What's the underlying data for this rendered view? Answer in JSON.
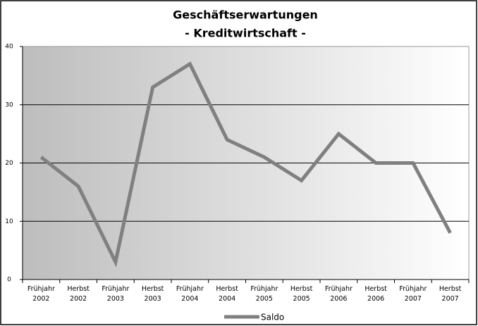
{
  "chart_data": {
    "type": "line",
    "title": "Geschäftserwartungen",
    "subtitle": "- Kreditwirtschaft -",
    "categories": [
      "Frühjahr 2002",
      "Herbst 2002",
      "Frühjahr 2003",
      "Herbst 2003",
      "Frühjahr 2004",
      "Herbst 2004",
      "Frühjahr 2005",
      "Herbst 2005",
      "Frühjahr 2006",
      "Herbst 2006",
      "Frühjahr 2007",
      "Herbst 2007"
    ],
    "series": [
      {
        "name": "Saldo",
        "color": "#808080",
        "values": [
          21,
          16,
          3,
          33,
          37,
          24,
          21,
          17,
          25,
          20,
          20,
          8
        ]
      }
    ],
    "ylim": [
      0,
      40
    ],
    "yticks": [
      0,
      10,
      20,
      30,
      40
    ],
    "grid": true,
    "legend": "bottom"
  }
}
